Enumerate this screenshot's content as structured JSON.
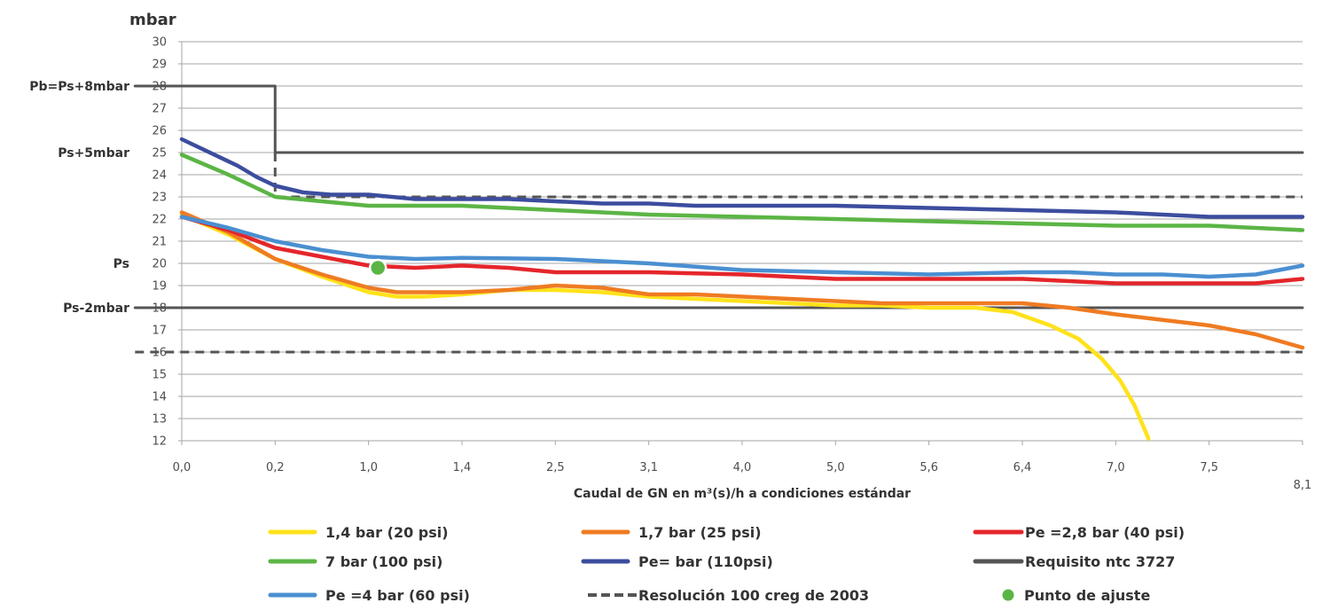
{
  "chart_data": {
    "type": "line",
    "y_unit": "mbar",
    "xlabel": "Caudal de GN en m³(s)/h a condiciones estándar",
    "ylim": [
      12,
      30
    ],
    "y_ticks": [
      12,
      13,
      14,
      15,
      16,
      17,
      18,
      19,
      20,
      21,
      22,
      23,
      24,
      25,
      26,
      27,
      28,
      29,
      30
    ],
    "x_range": [
      0,
      12
    ],
    "x_ticks": [
      "0,0",
      "0,2",
      "1,0",
      "1,4",
      "2,5",
      "3,1",
      "4,0",
      "5,0",
      "5,6",
      "6,4",
      "7,0",
      "7,5",
      "8,1"
    ],
    "y_side_labels": [
      {
        "text": "Pb=Ps+8mbar",
        "y": 28
      },
      {
        "text": "Ps+5mbar",
        "y": 25
      },
      {
        "text": "Ps",
        "y": 20
      },
      {
        "text": "Ps-2mbar",
        "y": 18
      }
    ],
    "grid": true,
    "legend_position": "bottom",
    "series": [
      {
        "name": "1,4 bar (20 psi)",
        "color": "#ffe21a",
        "style": "solid",
        "points": [
          [
            0,
            22.2
          ],
          [
            0.5,
            21.3
          ],
          [
            1,
            20.2
          ],
          [
            1.5,
            19.4
          ],
          [
            2,
            18.7
          ],
          [
            2.3,
            18.5
          ],
          [
            2.6,
            18.5
          ],
          [
            3,
            18.6
          ],
          [
            3.5,
            18.8
          ],
          [
            4,
            18.8
          ],
          [
            4.5,
            18.7
          ],
          [
            5,
            18.5
          ],
          [
            5.5,
            18.4
          ],
          [
            6,
            18.3
          ],
          [
            6.5,
            18.2
          ],
          [
            7,
            18.1
          ],
          [
            7.5,
            18.1
          ],
          [
            8,
            18.0
          ],
          [
            8.5,
            18.0
          ],
          [
            8.9,
            17.8
          ],
          [
            9.3,
            17.2
          ],
          [
            9.6,
            16.6
          ],
          [
            9.85,
            15.7
          ],
          [
            10.05,
            14.7
          ],
          [
            10.2,
            13.6
          ],
          [
            10.35,
            12.1
          ]
        ]
      },
      {
        "name": "1,7 bar (25 psi)",
        "color": "#ef7b22",
        "style": "solid",
        "points": [
          [
            0,
            22.3
          ],
          [
            0.5,
            21.4
          ],
          [
            1,
            20.2
          ],
          [
            1.5,
            19.5
          ],
          [
            2,
            18.9
          ],
          [
            2.3,
            18.7
          ],
          [
            3,
            18.7
          ],
          [
            3.5,
            18.8
          ],
          [
            4,
            19.0
          ],
          [
            4.5,
            18.9
          ],
          [
            5,
            18.6
          ],
          [
            5.5,
            18.6
          ],
          [
            6,
            18.5
          ],
          [
            6.5,
            18.4
          ],
          [
            7,
            18.3
          ],
          [
            7.5,
            18.2
          ],
          [
            8,
            18.2
          ],
          [
            9,
            18.2
          ],
          [
            9.5,
            18.0
          ],
          [
            10,
            17.7
          ],
          [
            11,
            17.2
          ],
          [
            11.5,
            16.8
          ],
          [
            12,
            16.2
          ]
        ]
      },
      {
        "name": "Pe =2,8 bar (40 psi)",
        "color": "#e4262b",
        "style": "solid",
        "points": [
          [
            0,
            22.1
          ],
          [
            0.5,
            21.5
          ],
          [
            1,
            20.7
          ],
          [
            1.5,
            20.3
          ],
          [
            2,
            19.9
          ],
          [
            2.5,
            19.8
          ],
          [
            3,
            19.9
          ],
          [
            3.5,
            19.8
          ],
          [
            4,
            19.6
          ],
          [
            4.5,
            19.6
          ],
          [
            5,
            19.6
          ],
          [
            6,
            19.5
          ],
          [
            7,
            19.3
          ],
          [
            8,
            19.3
          ],
          [
            9,
            19.3
          ],
          [
            10,
            19.1
          ],
          [
            11,
            19.1
          ],
          [
            11.5,
            19.1
          ],
          [
            12,
            19.3
          ]
        ]
      },
      {
        "name": "7 bar (100 psi)",
        "color": "#5bb545",
        "style": "solid",
        "points": [
          [
            0,
            24.9
          ],
          [
            0.5,
            24.0
          ],
          [
            1,
            23.0
          ],
          [
            1.5,
            22.8
          ],
          [
            2,
            22.6
          ],
          [
            3,
            22.6
          ],
          [
            4,
            22.4
          ],
          [
            5,
            22.2
          ],
          [
            6,
            22.1
          ],
          [
            7,
            22.0
          ],
          [
            8,
            21.9
          ],
          [
            9,
            21.8
          ],
          [
            10,
            21.7
          ],
          [
            11,
            21.7
          ],
          [
            11.5,
            21.6
          ],
          [
            12,
            21.5
          ]
        ]
      },
      {
        "name": "Pe= bar (110psi)",
        "color": "#3c4d9e",
        "style": "solid",
        "points": [
          [
            0,
            25.6
          ],
          [
            0.3,
            25.0
          ],
          [
            0.6,
            24.4
          ],
          [
            0.8,
            23.9
          ],
          [
            1,
            23.5
          ],
          [
            1.3,
            23.2
          ],
          [
            1.6,
            23.1
          ],
          [
            2,
            23.1
          ],
          [
            2.5,
            22.9
          ],
          [
            3,
            22.9
          ],
          [
            3.5,
            22.9
          ],
          [
            4,
            22.8
          ],
          [
            4.5,
            22.7
          ],
          [
            5,
            22.7
          ],
          [
            5.5,
            22.6
          ],
          [
            6,
            22.6
          ],
          [
            6.5,
            22.6
          ],
          [
            7,
            22.6
          ],
          [
            8,
            22.5
          ],
          [
            9,
            22.4
          ],
          [
            10,
            22.3
          ],
          [
            10.5,
            22.2
          ],
          [
            11,
            22.1
          ],
          [
            12,
            22.1
          ]
        ]
      },
      {
        "name": "Requisito  ntc 3727",
        "color": "#555555",
        "style": "solid",
        "points": [
          [
            -0.5,
            28
          ],
          [
            1,
            28
          ],
          [
            1,
            25
          ],
          [
            12,
            25
          ]
        ]
      },
      {
        "name": "Requisito  ntc 3727",
        "color": "#555555",
        "style": "solid",
        "hide_legend": true,
        "points": [
          [
            -0.5,
            18
          ],
          [
            12,
            18
          ]
        ]
      },
      {
        "name": "Pe =4 bar (60 psi)",
        "color": "#4a8fd1",
        "style": "solid",
        "points": [
          [
            0,
            22.1
          ],
          [
            0.5,
            21.6
          ],
          [
            1,
            21.0
          ],
          [
            1.5,
            20.6
          ],
          [
            2,
            20.3
          ],
          [
            2.5,
            20.2
          ],
          [
            3,
            20.25
          ],
          [
            4,
            20.2
          ],
          [
            5,
            20.0
          ],
          [
            6,
            19.7
          ],
          [
            7,
            19.6
          ],
          [
            8,
            19.5
          ],
          [
            9,
            19.6
          ],
          [
            9.5,
            19.6
          ],
          [
            10,
            19.5
          ],
          [
            10.5,
            19.5
          ],
          [
            11,
            19.4
          ],
          [
            11.5,
            19.5
          ],
          [
            12,
            19.9
          ]
        ]
      },
      {
        "name": "Resolución 100 creg de 2003",
        "color": "#555555",
        "style": "dashed",
        "points": [
          [
            1,
            25
          ],
          [
            1,
            23
          ],
          [
            12,
            23
          ]
        ]
      },
      {
        "name": "Resolución 100 creg de 2003",
        "color": "#555555",
        "style": "dashed",
        "hide_legend": true,
        "points": [
          [
            -0.5,
            16
          ],
          [
            12,
            16
          ]
        ]
      }
    ],
    "markers": [
      {
        "name": "Punto de ajuste",
        "color": "#5bb545",
        "x": 2.1,
        "y": 19.8
      }
    ]
  },
  "legend": {
    "items": [
      {
        "label": "1,4 bar (20 psi)",
        "color": "#ffe21a",
        "kind": "line"
      },
      {
        "label": "1,7 bar (25 psi)",
        "color": "#ef7b22",
        "kind": "line"
      },
      {
        "label": "Pe =2,8 bar (40 psi)",
        "color": "#e4262b",
        "kind": "line"
      },
      {
        "label": "7 bar (100 psi)",
        "color": "#5bb545",
        "kind": "line"
      },
      {
        "label": "Pe= bar (110psi)",
        "color": "#3c4d9e",
        "kind": "line"
      },
      {
        "label": "Requisito  ntc 3727",
        "color": "#555555",
        "kind": "line"
      },
      {
        "label": "Pe =4 bar (60 psi)",
        "color": "#4a8fd1",
        "kind": "line"
      },
      {
        "label": "Resolución 100 creg de 2003",
        "color": "#555555",
        "kind": "dashed"
      },
      {
        "label": "Punto de ajuste",
        "color": "#5bb545",
        "kind": "dot"
      }
    ]
  }
}
